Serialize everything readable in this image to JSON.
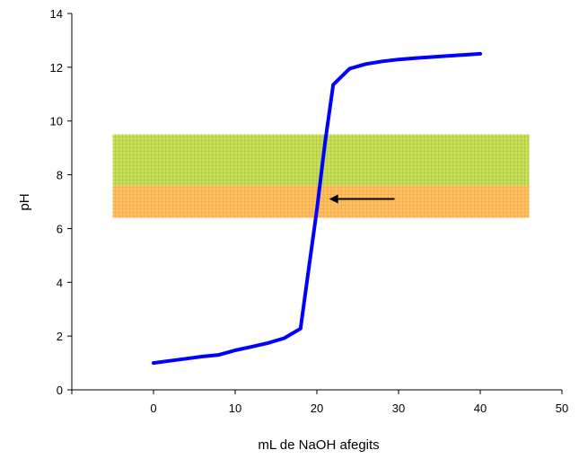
{
  "chart_data": {
    "type": "line",
    "title": "",
    "xlabel": "mL de NaOH afegits",
    "ylabel": "pH",
    "xlim": [
      -10,
      50
    ],
    "ylim": [
      0,
      14
    ],
    "xticks": [
      0,
      10,
      20,
      30,
      40,
      50
    ],
    "yticks": [
      0,
      2,
      4,
      6,
      8,
      10,
      12,
      14
    ],
    "grid": false,
    "legend": "none",
    "series": [
      {
        "color": "#0000ff",
        "x": [
          0,
          2,
          4,
          6,
          8,
          10,
          12,
          14,
          16,
          18,
          19,
          20,
          21,
          22,
          24,
          26,
          28,
          30,
          32,
          34,
          36,
          38,
          40
        ],
        "y": [
          1.0,
          1.08,
          1.16,
          1.24,
          1.3,
          1.47,
          1.6,
          1.74,
          1.92,
          2.28,
          4.5,
          6.7,
          9.2,
          11.35,
          11.95,
          12.12,
          12.22,
          12.29,
          12.34,
          12.38,
          12.42,
          12.46,
          12.5
        ]
      }
    ],
    "bands": [
      {
        "label": "",
        "y": [
          7.6,
          9.5
        ],
        "x": [
          -5,
          46
        ],
        "color": "#c8e05a"
      },
      {
        "label": "",
        "y": [
          6.4,
          7.6
        ],
        "x": [
          -5,
          46
        ],
        "color": "#ffc166"
      }
    ],
    "annotations": [
      {
        "type": "arrow",
        "from": [
          29.5,
          7.1
        ],
        "to": [
          21.5,
          7.1
        ],
        "color": "#000000"
      }
    ]
  }
}
